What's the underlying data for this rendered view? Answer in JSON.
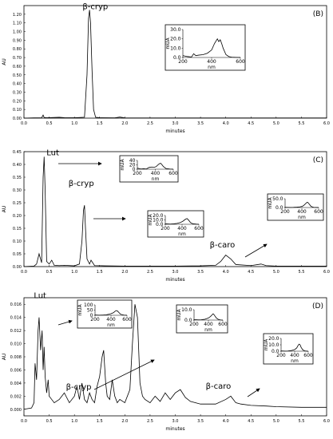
{
  "chart_data": [
    {
      "type": "line",
      "panel": "(B)",
      "xlabel": "minutes",
      "ylabel": "AU",
      "xlim": [
        0.0,
        6.0
      ],
      "ylim": [
        0.0,
        1.3
      ],
      "x_ticks": [
        "0.0",
        "0.5",
        "1.0",
        "1.5",
        "2.0",
        "2.5",
        "3.0",
        "3.5",
        "4.0",
        "4.5",
        "5.0",
        "5.5",
        "6.0"
      ],
      "y_ticks": [
        "0.00",
        "0.10",
        "0.20",
        "0.30",
        "0.40",
        "0.50",
        "0.60",
        "0.70",
        "0.80",
        "0.90",
        "1.00",
        "1.10",
        "1.20"
      ],
      "series": [
        {
          "x": [
            0,
            0.2,
            0.35,
            0.38,
            0.4,
            0.45,
            0.7,
            0.8,
            1.0,
            1.2,
            1.25,
            1.28,
            1.3,
            1.32,
            1.35,
            1.38,
            1.42,
            1.5,
            1.8,
            1.9,
            2.0,
            3.0,
            4.0,
            5.0,
            6.0
          ],
          "y": [
            0,
            0.003,
            0.004,
            0.035,
            0.008,
            0.004,
            0.01,
            0.005,
            0.004,
            0.01,
            0.5,
            1.15,
            1.25,
            1.1,
            0.55,
            0.1,
            0.01,
            0.004,
            0.003,
            0.012,
            0.003,
            0.002,
            0.002,
            0.002,
            0.002
          ]
        }
      ],
      "annotations": [
        {
          "text": "β-cryp",
          "x": 1.32,
          "y": 1.23
        }
      ],
      "insets": [
        {
          "xlabel": "nm",
          "ylabel": "mUA",
          "xlim": [
            200,
            600
          ],
          "ylim": [
            0,
            30
          ],
          "x_ticks": [
            "200",
            "400",
            "600"
          ],
          "y_ticks": [
            "0.0",
            "10.0",
            "20.0",
            "30.0"
          ],
          "x": [
            200,
            230,
            260,
            275,
            290,
            310,
            340,
            370,
            400,
            420,
            440,
            450,
            460,
            470,
            480,
            500,
            520,
            540,
            570,
            600
          ],
          "y": [
            2,
            1,
            0.5,
            4,
            2,
            2.5,
            3,
            4.5,
            8,
            15,
            20,
            17,
            19,
            15,
            10,
            3,
            1,
            0.3,
            0.1,
            0
          ]
        }
      ]
    },
    {
      "type": "line",
      "panel": "(C)",
      "xlabel": "minutes",
      "ylabel": "AU",
      "xlim": [
        0.0,
        6.0
      ],
      "ylim": [
        0.0,
        0.45
      ],
      "x_ticks": [
        "0.0",
        "0.5",
        "1.0",
        "1.5",
        "2.0",
        "2.5",
        "3.0",
        "3.5",
        "4.0",
        "4.5",
        "5.0",
        "5.5",
        "6.0"
      ],
      "y_ticks": [
        "0.00",
        "0.05",
        "0.10",
        "0.15",
        "0.20",
        "0.25",
        "0.30",
        "0.35",
        "0.40",
        "0.45"
      ],
      "series": [
        {
          "x": [
            0,
            0.2,
            0.25,
            0.3,
            0.35,
            0.38,
            0.4,
            0.42,
            0.45,
            0.5,
            0.55,
            0.6,
            0.7,
            0.8,
            1.0,
            1.1,
            1.15,
            1.18,
            1.2,
            1.22,
            1.25,
            1.3,
            1.33,
            1.4,
            1.6,
            2.0,
            2.5,
            3.0,
            3.5,
            3.8,
            3.9,
            4.0,
            4.1,
            4.2,
            4.5,
            4.7,
            4.8,
            5.0,
            5.5,
            6.0
          ],
          "y": [
            0,
            0.002,
            0.01,
            0.05,
            0.015,
            0.35,
            0.43,
            0.3,
            0.02,
            0.01,
            0.025,
            0.005,
            0.004,
            0.005,
            0.003,
            0.01,
            0.1,
            0.22,
            0.24,
            0.15,
            0.03,
            0.01,
            0.025,
            0.004,
            0.003,
            0.002,
            0.002,
            0.002,
            0.003,
            0.005,
            0.02,
            0.045,
            0.03,
            0.008,
            0.004,
            0.01,
            0.004,
            0.002,
            0.002,
            0.002
          ]
        }
      ],
      "annotations": [
        {
          "text": "Lut",
          "x": 0.4,
          "y": 0.43
        },
        {
          "text": "β-cryp",
          "x": 1.2,
          "y": 0.3
        },
        {
          "text": "β-caro",
          "x": 4.0,
          "y": 0.05
        }
      ],
      "insets": [
        {
          "xlabel": "nm",
          "ylabel": "mUA",
          "xlim": [
            200,
            600
          ],
          "ylim": [
            0,
            40
          ],
          "x_ticks": [
            "200",
            "400",
            "600"
          ],
          "y_ticks": [
            "0",
            "20",
            "40"
          ],
          "x": [
            200,
            240,
            270,
            300,
            330,
            360,
            390,
            410,
            430,
            445,
            460,
            475,
            490,
            520,
            560,
            600
          ],
          "y": [
            5,
            1,
            2,
            1,
            8,
            10,
            9,
            12,
            20,
            25,
            27,
            20,
            12,
            3,
            1,
            0
          ]
        },
        {
          "xlabel": "nm",
          "ylabel": "mUA",
          "xlim": [
            200,
            600
          ],
          "ylim": [
            0,
            20
          ],
          "x_ticks": [
            "200",
            "400",
            "600"
          ],
          "y_ticks": [
            "0.0",
            "10.0",
            "20.0"
          ],
          "x": [
            200,
            260,
            300,
            340,
            380,
            410,
            430,
            445,
            460,
            470,
            480,
            500,
            530,
            570,
            600
          ],
          "y": [
            1,
            0.5,
            1,
            2,
            4,
            7,
            10,
            12,
            13,
            11,
            9,
            4,
            1,
            0.3,
            0
          ]
        },
        {
          "xlabel": "nm",
          "ylabel": "mUA",
          "xlim": [
            200,
            600
          ],
          "ylim": [
            0,
            50
          ],
          "x_ticks": [
            "200",
            "400",
            "600"
          ],
          "y_ticks": [
            "0.0",
            "50.0"
          ],
          "x": [
            200,
            260,
            300,
            340,
            380,
            410,
            430,
            450,
            465,
            475,
            490,
            510,
            540,
            580,
            600
          ],
          "y": [
            1,
            0.5,
            1,
            2,
            4,
            8,
            15,
            25,
            30,
            27,
            18,
            6,
            1,
            0.3,
            0
          ]
        }
      ]
    },
    {
      "type": "line",
      "panel": "(D)",
      "xlabel": "minutes",
      "ylabel": "AU",
      "xlim": [
        0.0,
        6.0
      ],
      "ylim": [
        -0.001,
        0.017
      ],
      "x_ticks": [
        "0.0",
        "0.5",
        "1.0",
        "1.5",
        "2.0",
        "2.5",
        "3.0",
        "3.5",
        "4.0",
        "4.5",
        "5.0",
        "5.5",
        "6.0"
      ],
      "y_ticks": [
        "0.000",
        "0.002",
        "0.004",
        "0.006",
        "0.008",
        "0.010",
        "0.012",
        "0.014",
        "0.016"
      ],
      "series": [
        {
          "x": [
            0,
            0.15,
            0.2,
            0.22,
            0.25,
            0.28,
            0.3,
            0.33,
            0.36,
            0.38,
            0.4,
            0.42,
            0.45,
            0.48,
            0.5,
            0.55,
            0.6,
            0.7,
            0.8,
            0.9,
            1.0,
            1.05,
            1.1,
            1.15,
            1.2,
            1.25,
            1.3,
            1.35,
            1.4,
            1.45,
            1.5,
            1.55,
            1.58,
            1.62,
            1.65,
            1.7,
            1.75,
            1.8,
            1.85,
            1.9,
            2.0,
            2.1,
            2.15,
            2.2,
            2.25,
            2.3,
            2.35,
            2.4,
            2.5,
            2.6,
            2.7,
            2.8,
            2.9,
            3.0,
            3.1,
            3.2,
            3.3,
            3.5,
            3.8,
            4.0,
            4.1,
            4.2,
            4.3,
            4.5,
            4.8,
            5.0,
            5.5,
            6.0
          ],
          "y": [
            0,
            0.0002,
            0.001,
            0.007,
            0.0045,
            0.012,
            0.014,
            0.009,
            0.012,
            0.006,
            0.0095,
            0.005,
            0.0025,
            0.0045,
            0.002,
            0.0015,
            0.001,
            0.0015,
            0.0025,
            0.001,
            0.002,
            0.0035,
            0.0015,
            0.004,
            0.0015,
            0.001,
            0.0025,
            0.0015,
            0.001,
            0.0035,
            0.005,
            0.008,
            0.009,
            0.004,
            0.002,
            0.0015,
            0.0045,
            0.002,
            0.001,
            0.0015,
            0.001,
            0.003,
            0.01,
            0.016,
            0.014,
            0.004,
            0.002,
            0.0015,
            0.001,
            0.002,
            0.0012,
            0.0025,
            0.0015,
            0.0025,
            0.003,
            0.0018,
            0.0012,
            0.0008,
            0.0008,
            0.0015,
            0.002,
            0.001,
            0.0008,
            0.0006,
            0.0005,
            0.0004,
            0.0003,
            0.0003
          ]
        }
      ],
      "annotations": [
        {
          "text": "Lut",
          "x": 0.48,
          "y": 0.0145
        },
        {
          "text": "β-cryp",
          "x": 1.15,
          "y": 0.004
        },
        {
          "text": "β-caro",
          "x": 4.0,
          "y": 0.0025
        }
      ],
      "insets": [
        {
          "xlabel": "nm",
          "ylabel": "mUA",
          "xlim": [
            200,
            600
          ],
          "ylim": [
            0,
            100
          ],
          "x_ticks": [
            "200",
            "400",
            "600"
          ],
          "y_ticks": [
            "0",
            "50",
            "100"
          ],
          "x": [
            200,
            250,
            300,
            340,
            370,
            400,
            430,
            450,
            465,
            480,
            495,
            520,
            560,
            600
          ],
          "y": [
            3,
            1,
            2,
            5,
            9,
            15,
            25,
            38,
            45,
            42,
            30,
            10,
            2,
            0
          ]
        },
        {
          "xlabel": "nm",
          "ylabel": "mUA",
          "xlim": [
            200,
            600
          ],
          "ylim": [
            0,
            10
          ],
          "x_ticks": [
            "200",
            "400",
            "600"
          ],
          "y_ticks": [
            "0.0",
            "10.0"
          ],
          "x": [
            200,
            260,
            300,
            350,
            400,
            430,
            450,
            465,
            475,
            490,
            510,
            540,
            570,
            600
          ],
          "y": [
            0.5,
            0.2,
            0.3,
            0.8,
            2,
            3.5,
            5,
            6,
            5.5,
            4,
            2,
            0.6,
            0.1,
            0
          ]
        },
        {
          "xlabel": "nm",
          "ylabel": "mUA",
          "xlim": [
            200,
            600
          ],
          "ylim": [
            0,
            20
          ],
          "x_ticks": [
            "200",
            "400",
            "600"
          ],
          "y_ticks": [
            "0.0",
            "10.0",
            "20.0"
          ],
          "x": [
            200,
            260,
            300,
            350,
            400,
            430,
            450,
            465,
            480,
            495,
            520,
            550,
            580,
            600
          ],
          "y": [
            0.5,
            0.2,
            0.3,
            1,
            2.5,
            5,
            9,
            11,
            10,
            6,
            2,
            0.5,
            0.1,
            0
          ]
        }
      ]
    }
  ]
}
